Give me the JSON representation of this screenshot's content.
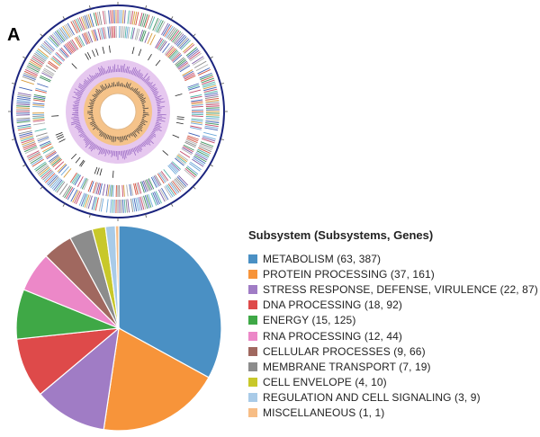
{
  "panel_label": "A",
  "genome_map": {
    "outer_ring_color": "#1a237e",
    "inner_ring_color": "#e6c8ef",
    "core_ring_color": "#f5c38a"
  },
  "chart_data": {
    "type": "pie",
    "title": "Subsystem (Subsystems, Genes)",
    "categories": [
      "METABOLISM (63, 387)",
      "PROTEIN PROCESSING (37, 161)",
      "STRESS RESPONSE, DEFENSE, VIRULENCE (22, 87)",
      "DNA PROCESSING (18, 92)",
      "ENERGY (15, 125)",
      "RNA PROCESSING (12, 44)",
      "CELLULAR PROCESSES (9, 66)",
      "MEMBRANE TRANSPORT (7, 19)",
      "CELL ENVELOPE (4, 10)",
      "REGULATION AND CELL SIGNALING (3, 9)",
      "MISCELLANEOUS (1, 1)"
    ],
    "values": [
      63,
      37,
      22,
      18,
      15,
      12,
      9,
      7,
      4,
      3,
      1
    ],
    "colors": [
      "#4a90c4",
      "#f7943a",
      "#a07cc5",
      "#de4a4a",
      "#3fa846",
      "#ec88c8",
      "#a0685f",
      "#8c8c8c",
      "#c8c82a",
      "#a9cbe8",
      "#f7bd85"
    ],
    "legend_placement": "right"
  }
}
